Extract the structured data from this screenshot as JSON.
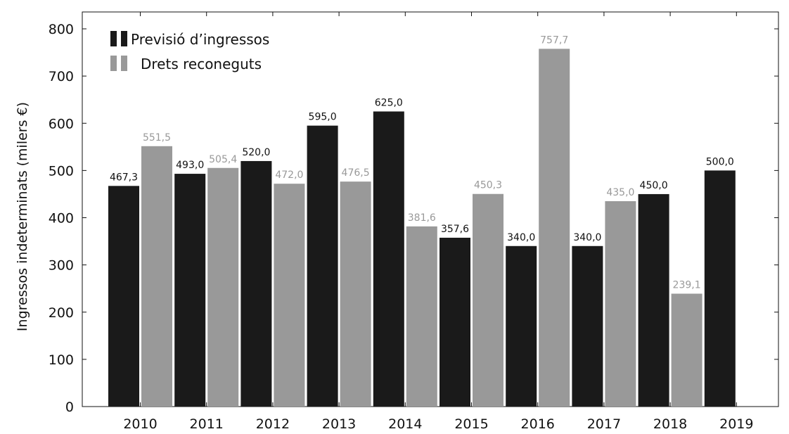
{
  "chart_data": {
    "type": "bar",
    "ylabel": "Ingressos indeterminats (milers €)",
    "ylim": [
      0,
      800
    ],
    "yticks": [
      "0",
      "100",
      "200",
      "300",
      "400",
      "500",
      "600",
      "700",
      "800"
    ],
    "categories": [
      "2010",
      "2011",
      "2012",
      "2013",
      "2014",
      "2015",
      "2016",
      "2017",
      "2018",
      "2019"
    ],
    "legend_position": "top-left",
    "grid": false,
    "series": [
      {
        "name": "Previsió d’ingressos",
        "color": "#1a1a1a",
        "values": [
          467.3,
          493.0,
          520.0,
          595.0,
          625.0,
          357.6,
          340.0,
          340.0,
          450.0,
          500.0
        ],
        "labels": [
          "467,3",
          "493,0",
          "520,0",
          "595,0",
          "625,0",
          "357,6",
          "340,0",
          "340,0",
          "450,0",
          "500,0"
        ]
      },
      {
        "name": "Drets reconeguts",
        "color": "#999999",
        "values": [
          551.5,
          505.4,
          472.0,
          476.5,
          381.6,
          450.3,
          757.7,
          435.0,
          239.1,
          null
        ],
        "labels": [
          "551,5",
          "505,4",
          "472,0",
          "476,5",
          "381,6",
          "450,3",
          "757,7",
          "435,0",
          "239,1",
          null
        ]
      }
    ]
  }
}
